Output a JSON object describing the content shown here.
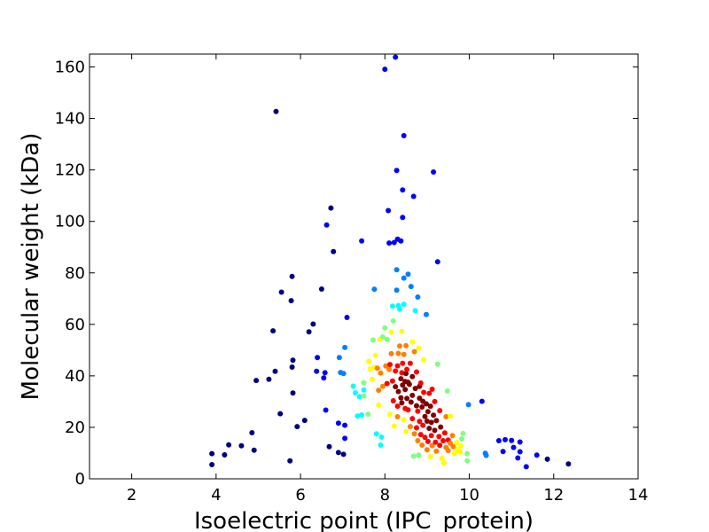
{
  "chart_data": {
    "type": "scatter",
    "title": "",
    "xlabel": "Isoelectric point (IPC_protein)",
    "ylabel": "Molecular weight (kDa)",
    "xlim": [
      1,
      14
    ],
    "ylim": [
      0,
      165
    ],
    "xticks": [
      2,
      4,
      6,
      8,
      10,
      12,
      14
    ],
    "yticks": [
      0,
      20,
      40,
      60,
      80,
      100,
      120,
      140,
      160
    ],
    "grid": false,
    "legend": "none",
    "color_by": "point density",
    "colormap": [
      "#00007f",
      "#0000ff",
      "#007fff",
      "#00ffff",
      "#7fff7f",
      "#ffff00",
      "#ff7f00",
      "#ff0000",
      "#7f0000"
    ],
    "points": [
      [
        3.9,
        5.5,
        0
      ],
      [
        3.9,
        9.8,
        0
      ],
      [
        4.2,
        9.3,
        0
      ],
      [
        4.3,
        13.2,
        0
      ],
      [
        4.6,
        12.8,
        0
      ],
      [
        4.85,
        17.9,
        0
      ],
      [
        4.9,
        11.1,
        0
      ],
      [
        4.95,
        38.2,
        0
      ],
      [
        5.25,
        38.7,
        0
      ],
      [
        5.35,
        57.5,
        0
      ],
      [
        5.4,
        41.8,
        0
      ],
      [
        5.42,
        142.7,
        0
      ],
      [
        5.52,
        25.3,
        0
      ],
      [
        5.55,
        72.5,
        0
      ],
      [
        5.75,
        7.0,
        0
      ],
      [
        5.78,
        69.2,
        0
      ],
      [
        5.8,
        78.6,
        0
      ],
      [
        5.8,
        43.4,
        0
      ],
      [
        5.82,
        46.1,
        0
      ],
      [
        5.82,
        33.3,
        0
      ],
      [
        5.92,
        20.3,
        0
      ],
      [
        6.1,
        22.7,
        0
      ],
      [
        6.2,
        57.1,
        0
      ],
      [
        6.3,
        60.1,
        0
      ],
      [
        6.38,
        41.8,
        1
      ],
      [
        6.4,
        47.1,
        1
      ],
      [
        6.5,
        73.7,
        0
      ],
      [
        6.55,
        39.2,
        1
      ],
      [
        6.58,
        41.2,
        1
      ],
      [
        6.6,
        26.7,
        1
      ],
      [
        6.62,
        98.6,
        1
      ],
      [
        6.68,
        12.5,
        0
      ],
      [
        6.72,
        105.2,
        0
      ],
      [
        6.78,
        88.3,
        0
      ],
      [
        6.9,
        10.2,
        0
      ],
      [
        6.9,
        21.6,
        1
      ],
      [
        6.92,
        47.1,
        2
      ],
      [
        6.95,
        41.3,
        2
      ],
      [
        7.02,
        9.5,
        0
      ],
      [
        7.02,
        40.9,
        2
      ],
      [
        7.05,
        15.7,
        1
      ],
      [
        7.05,
        20.8,
        1
      ],
      [
        7.05,
        51.0,
        2
      ],
      [
        7.1,
        62.7,
        1
      ],
      [
        7.25,
        36.0,
        3
      ],
      [
        7.3,
        33.4,
        3
      ],
      [
        7.35,
        24.4,
        3
      ],
      [
        7.4,
        31.9,
        3
      ],
      [
        7.45,
        24.8,
        3
      ],
      [
        7.45,
        92.4,
        1
      ],
      [
        7.5,
        34.5,
        3
      ],
      [
        7.5,
        37.3,
        4
      ],
      [
        7.5,
        32.1,
        4
      ],
      [
        7.6,
        25.1,
        4
      ],
      [
        7.62,
        45.6,
        5
      ],
      [
        7.65,
        42.6,
        5
      ],
      [
        7.7,
        38.6,
        5
      ],
      [
        7.72,
        53.9,
        4
      ],
      [
        7.75,
        43.3,
        5
      ],
      [
        7.75,
        73.6,
        2
      ],
      [
        7.78,
        48.0,
        5
      ],
      [
        7.8,
        17.5,
        3
      ],
      [
        7.82,
        43.0,
        6
      ],
      [
        7.85,
        28.7,
        5
      ],
      [
        7.85,
        34.4,
        6
      ],
      [
        7.88,
        54.2,
        5
      ],
      [
        7.9,
        41.1,
        6
      ],
      [
        7.9,
        13.1,
        3
      ],
      [
        7.92,
        16.2,
        3
      ],
      [
        7.95,
        35.9,
        6
      ],
      [
        7.95,
        55.1,
        4
      ],
      [
        8.0,
        58.6,
        4
      ],
      [
        8.0,
        159.1,
        1
      ],
      [
        8.02,
        43.8,
        6
      ],
      [
        8.05,
        37.0,
        7
      ],
      [
        8.05,
        54.2,
        4
      ],
      [
        8.08,
        104.2,
        1
      ],
      [
        8.1,
        91.6,
        1
      ],
      [
        8.1,
        42.5,
        6
      ],
      [
        8.12,
        44.4,
        7
      ],
      [
        8.12,
        25.0,
        5
      ],
      [
        8.15,
        48.6,
        6
      ],
      [
        8.15,
        57.0,
        5
      ],
      [
        8.18,
        38.0,
        7
      ],
      [
        8.18,
        67.1,
        3
      ],
      [
        8.2,
        30.3,
        7
      ],
      [
        8.2,
        61.3,
        4
      ],
      [
        8.22,
        91.8,
        1
      ],
      [
        8.22,
        20.5,
        5
      ],
      [
        8.25,
        163.8,
        1
      ],
      [
        8.25,
        35.8,
        8
      ],
      [
        8.25,
        41.9,
        7
      ],
      [
        8.28,
        119.8,
        1
      ],
      [
        8.28,
        73.3,
        2
      ],
      [
        8.28,
        81.2,
        2
      ],
      [
        8.3,
        93.1,
        1
      ],
      [
        8.3,
        43.9,
        7
      ],
      [
        8.3,
        28.2,
        7
      ],
      [
        8.3,
        24.1,
        6
      ],
      [
        8.32,
        33.9,
        8
      ],
      [
        8.32,
        48.7,
        6
      ],
      [
        8.32,
        67.3,
        3
      ],
      [
        8.35,
        51.6,
        6
      ],
      [
        8.35,
        65.9,
        3
      ],
      [
        8.38,
        92.4,
        1
      ],
      [
        8.38,
        38.9,
        8
      ],
      [
        8.38,
        31.5,
        8
      ],
      [
        8.4,
        29.5,
        8
      ],
      [
        8.4,
        41.2,
        7
      ],
      [
        8.4,
        57.3,
        5
      ],
      [
        8.42,
        112.2,
        1
      ],
      [
        8.42,
        101.5,
        1
      ],
      [
        8.42,
        44.9,
        7
      ],
      [
        8.42,
        36.4,
        8
      ],
      [
        8.45,
        133.3,
        1
      ],
      [
        8.45,
        67.8,
        3
      ],
      [
        8.45,
        78.0,
        2
      ],
      [
        8.45,
        48.3,
        6
      ],
      [
        8.45,
        22.9,
        5
      ],
      [
        8.48,
        34.7,
        8
      ],
      [
        8.48,
        27.3,
        7
      ],
      [
        8.48,
        37.8,
        8
      ],
      [
        8.5,
        40.9,
        8
      ],
      [
        8.5,
        51.7,
        6
      ],
      [
        8.5,
        18.4,
        5
      ],
      [
        8.52,
        31.2,
        8
      ],
      [
        8.52,
        42.5,
        7
      ],
      [
        8.55,
        79.5,
        2
      ],
      [
        8.55,
        37.5,
        8
      ],
      [
        8.55,
        26.8,
        7
      ],
      [
        8.58,
        36.7,
        8
      ],
      [
        8.6,
        20.3,
        6
      ],
      [
        8.6,
        44.9,
        7
      ],
      [
        8.62,
        74.7,
        2
      ],
      [
        8.62,
        29.8,
        8
      ],
      [
        8.65,
        39.7,
        8
      ],
      [
        8.65,
        23.4,
        7
      ],
      [
        8.65,
        32.4,
        8
      ],
      [
        8.65,
        53.2,
        5
      ],
      [
        8.68,
        109.7,
        1
      ],
      [
        8.68,
        8.8,
        4
      ],
      [
        8.7,
        49.4,
        6
      ],
      [
        8.7,
        17.5,
        6
      ],
      [
        8.72,
        35.1,
        8
      ],
      [
        8.72,
        65.3,
        3
      ],
      [
        8.75,
        28.4,
        8
      ],
      [
        8.75,
        41.5,
        7
      ],
      [
        8.75,
        19.8,
        7
      ],
      [
        8.78,
        70.6,
        2
      ],
      [
        8.78,
        26.3,
        7
      ],
      [
        8.78,
        14.8,
        6
      ],
      [
        8.8,
        9.2,
        4
      ],
      [
        8.8,
        50.7,
        5
      ],
      [
        8.82,
        31.3,
        8
      ],
      [
        8.82,
        22.3,
        7
      ],
      [
        8.82,
        35.9,
        8
      ],
      [
        8.85,
        17.2,
        7
      ],
      [
        8.85,
        37.2,
        7
      ],
      [
        8.88,
        27.9,
        8
      ],
      [
        8.88,
        13.1,
        6
      ],
      [
        8.9,
        30.1,
        8
      ],
      [
        8.9,
        20.8,
        7
      ],
      [
        8.92,
        33.6,
        7
      ],
      [
        8.92,
        46.2,
        5
      ],
      [
        8.95,
        24.2,
        8
      ],
      [
        8.95,
        16.1,
        7
      ],
      [
        8.98,
        63.8,
        2
      ],
      [
        8.98,
        29.1,
        8
      ],
      [
        9.0,
        11.3,
        6
      ],
      [
        9.0,
        22.4,
        8
      ],
      [
        9.02,
        14.5,
        7
      ],
      [
        9.02,
        26.1,
        8
      ],
      [
        9.05,
        19.6,
        8
      ],
      [
        9.05,
        33.2,
        7
      ],
      [
        9.08,
        28.2,
        8
      ],
      [
        9.08,
        8.6,
        5
      ],
      [
        9.1,
        16.8,
        7
      ],
      [
        9.1,
        21.9,
        8
      ],
      [
        9.12,
        34.8,
        7
      ],
      [
        9.12,
        12.9,
        6
      ],
      [
        9.15,
        24.7,
        8
      ],
      [
        9.15,
        119.2,
        1
      ],
      [
        9.18,
        18.8,
        8
      ],
      [
        9.18,
        30.0,
        7
      ],
      [
        9.2,
        14.2,
        7
      ],
      [
        9.22,
        10.7,
        6
      ],
      [
        9.22,
        22.6,
        8
      ],
      [
        9.25,
        84.3,
        1
      ],
      [
        9.25,
        44.5,
        4
      ],
      [
        9.28,
        16.4,
        7
      ],
      [
        9.3,
        13.0,
        7
      ],
      [
        9.3,
        26.5,
        7
      ],
      [
        9.32,
        20.1,
        8
      ],
      [
        9.35,
        8.0,
        5
      ],
      [
        9.38,
        14.8,
        7
      ],
      [
        9.4,
        6.2,
        5
      ],
      [
        9.42,
        17.8,
        7
      ],
      [
        9.45,
        12.2,
        6
      ],
      [
        9.45,
        24.1,
        6
      ],
      [
        9.48,
        34.1,
        4
      ],
      [
        9.5,
        15.1,
        7
      ],
      [
        9.5,
        11.0,
        6
      ],
      [
        9.55,
        13.8,
        6
      ],
      [
        9.55,
        24.4,
        5
      ],
      [
        9.6,
        16.8,
        6
      ],
      [
        9.62,
        12.5,
        6
      ],
      [
        9.65,
        9.9,
        5
      ],
      [
        9.7,
        14.1,
        5
      ],
      [
        9.72,
        11.5,
        5
      ],
      [
        9.78,
        10.4,
        5
      ],
      [
        9.8,
        12.8,
        5
      ],
      [
        9.82,
        15.5,
        4
      ],
      [
        9.85,
        17.6,
        4
      ],
      [
        9.95,
        7.0,
        4
      ],
      [
        9.95,
        9.8,
        4
      ],
      [
        9.98,
        28.8,
        2
      ],
      [
        10.3,
        30.1,
        1
      ],
      [
        10.38,
        9.9,
        2
      ],
      [
        10.4,
        9.1,
        2
      ],
      [
        10.7,
        14.8,
        1
      ],
      [
        10.8,
        10.6,
        1
      ],
      [
        10.85,
        15.2,
        1
      ],
      [
        11.0,
        14.9,
        1
      ],
      [
        11.05,
        12.2,
        1
      ],
      [
        11.15,
        8.1,
        1
      ],
      [
        11.2,
        14.3,
        1
      ],
      [
        11.2,
        10.5,
        1
      ],
      [
        11.35,
        4.7,
        1
      ],
      [
        11.6,
        9.2,
        1
      ],
      [
        11.85,
        7.6,
        0
      ],
      [
        12.35,
        5.8,
        0
      ]
    ]
  }
}
